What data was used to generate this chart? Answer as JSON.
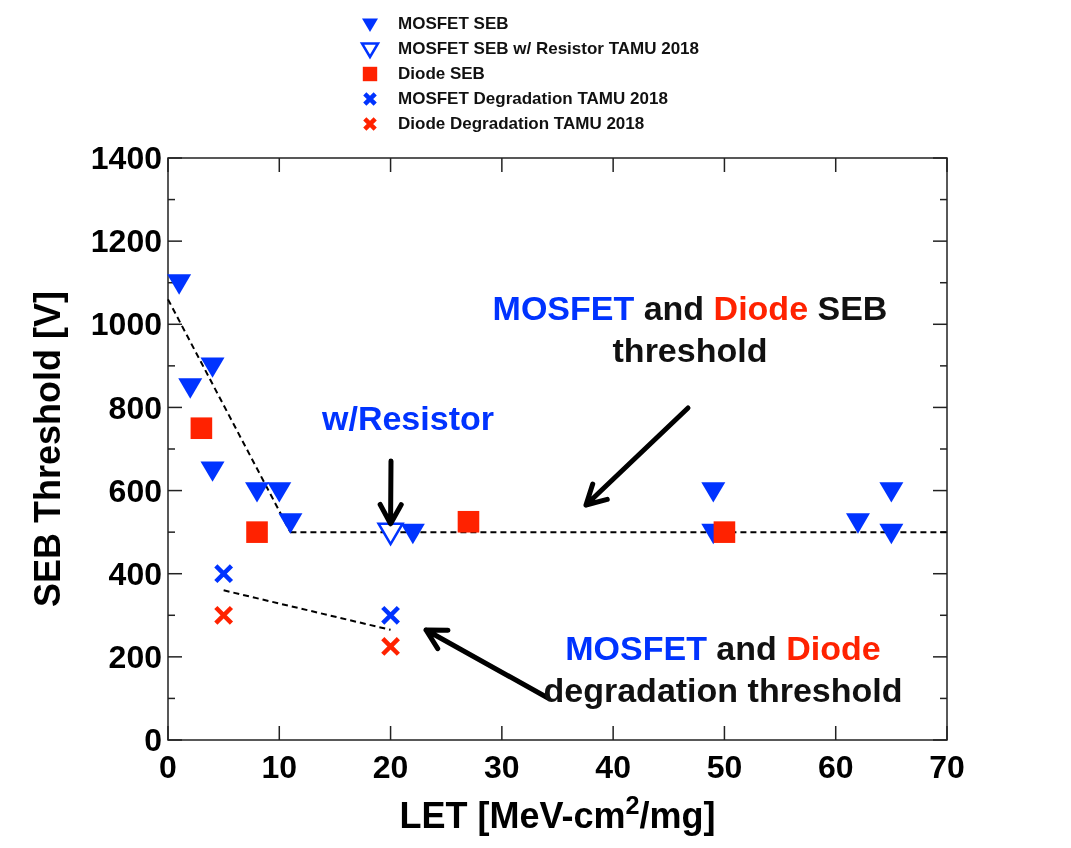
{
  "chart_data": {
    "type": "scatter",
    "xlabel": "LET [MeV-cm$^{2}$/mg]",
    "ylabel": "SEB Threshold [V]",
    "xlim": [
      0,
      70
    ],
    "xticks": [
      0,
      10,
      20,
      30,
      40,
      50,
      60,
      70
    ],
    "ylim": [
      0,
      1400
    ],
    "yticks": [
      0,
      200,
      400,
      600,
      800,
      1000,
      1200,
      1400
    ],
    "grid": false,
    "legend": "top",
    "series": [
      {
        "name": "MOSFET SEB",
        "color": "#0033ff",
        "marker": "triangle",
        "x": [
          1,
          2,
          4,
          4,
          8,
          10,
          11,
          22,
          49,
          49,
          62,
          65,
          65
        ],
        "values": [
          1100,
          850,
          900,
          650,
          600,
          600,
          525,
          500,
          600,
          500,
          525,
          600,
          500
        ]
      },
      {
        "name": "MOSFET SEB w/ Resistor TAMU 2018",
        "color": "#0033ff",
        "marker": "triangle",
        "x": [
          20
        ],
        "values": [
          500
        ]
      },
      {
        "name": "Diode SEB",
        "color": "#ff2200",
        "marker": "square",
        "x": [
          3,
          8,
          27,
          50
        ],
        "values": [
          750,
          500,
          525,
          500
        ]
      },
      {
        "name": "MOSFET Degradation TAMU 2018",
        "color": "#0033ff",
        "marker": "cross",
        "x": [
          5,
          20
        ],
        "values": [
          400,
          300
        ]
      },
      {
        "name": "Diode Degradation TAMU 2018",
        "color": "#ff2200",
        "marker": "cross",
        "x": [
          5,
          20
        ],
        "values": [
          300,
          225
        ]
      },
      {
        "type": "line",
        "color": "#000000",
        "line_style": "dashed",
        "marker": "none",
        "x": [
          0,
          11
        ],
        "values": [
          1060,
          500
        ]
      },
      {
        "type": "line",
        "color": "#000000",
        "line_style": "dashed",
        "marker": "none",
        "x": [
          11,
          70
        ],
        "values": [
          500,
          500
        ]
      },
      {
        "type": "line",
        "color": "#000000",
        "line_style": "dashed",
        "marker": "none",
        "x": [
          5,
          20
        ],
        "values": [
          360,
          265
        ]
      }
    ],
    "annotations": [
      "MOSFET and Diode SEB",
      "threshold",
      {
        "text": "w/Resistor",
        "x": 20,
        "y": 520
      },
      "MOSFET and Diode",
      "degradation threshold"
    ]
  }
}
